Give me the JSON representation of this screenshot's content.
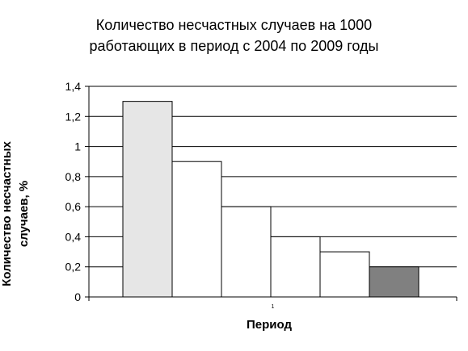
{
  "chart_data": {
    "type": "bar",
    "title_lines": [
      "Количество несчастных случаев на 1000",
      "работающих в период с 2004 по 2009 годы"
    ],
    "xlabel": "Период",
    "ylabel_lines": [
      "Количество несчастных",
      "случаев, %"
    ],
    "categories": [
      "1"
    ],
    "series": [
      {
        "values": [
          1.3
        ]
      },
      {
        "values": [
          0.9
        ]
      },
      {
        "values": [
          0.6
        ]
      },
      {
        "values": [
          0.4
        ]
      },
      {
        "values": [
          0.3
        ]
      },
      {
        "values": [
          0.2
        ]
      }
    ],
    "bar_colors": [
      "#e6e6e6",
      "#ffffff",
      "#ffffff",
      "#ffffff",
      "#ffffff",
      "#808080"
    ],
    "ylim": [
      0,
      1.4
    ],
    "yticks": [
      "0",
      "0,2",
      "0,4",
      "0,6",
      "0,8",
      "1",
      "1,2",
      "1,4"
    ],
    "grid": true,
    "legend": "none"
  }
}
